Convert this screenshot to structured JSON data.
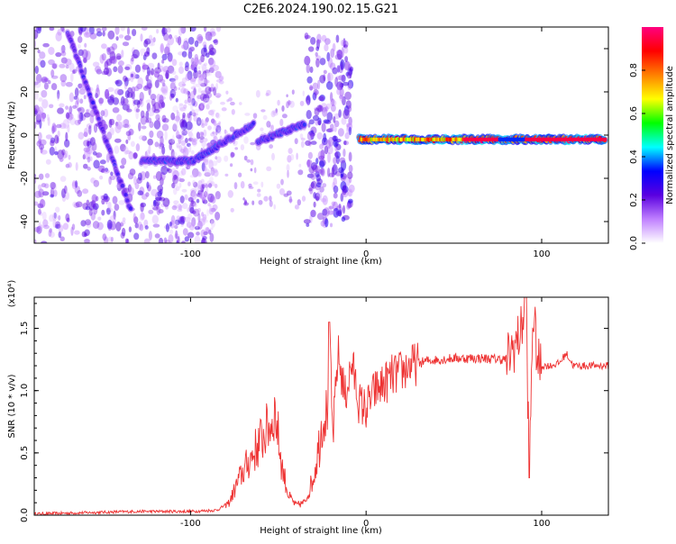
{
  "title": "C2E6.2024.190.02.15.G21",
  "chart_data": [
    {
      "type": "heatmap",
      "xlabel": "Height of straight line (km)",
      "ylabel": "Frequency (Hz)",
      "xlim": [
        -189,
        138
      ],
      "ylim": [
        -50,
        50
      ],
      "xticks": [
        -100,
        0,
        100
      ],
      "yticks": [
        -40,
        -20,
        0,
        20,
        40
      ],
      "colorbar": {
        "label": "Normalized spectral amplitude",
        "range": [
          0,
          1
        ],
        "ticks": [
          "0.0",
          "0.2",
          "0.4",
          "0.6",
          "0.8"
        ],
        "colors": [
          "#ffffff",
          "#c080ff",
          "#5a00e0",
          "#0000ff",
          "#00ffff",
          "#00ff00",
          "#ffff00",
          "#ff8000",
          "#ff0000",
          "#ff0080"
        ]
      },
      "features": [
        {
          "x": [
            -170,
            -134
          ],
          "y": [
            48,
            -35
          ],
          "level": 0.3
        },
        {
          "x": [
            -128,
            -99
          ],
          "y": [
            -12,
            -12
          ],
          "level": 0.35
        },
        {
          "x": [
            -99,
            -64
          ],
          "y": [
            -12,
            5
          ],
          "level": 0.35
        },
        {
          "x": [
            -62,
            -35
          ],
          "y": [
            -3,
            5
          ],
          "level": 0.35
        },
        {
          "x": [
            -4,
            136
          ],
          "y": [
            -2,
            -2
          ],
          "level": 0.9
        }
      ]
    },
    {
      "type": "line",
      "xlabel": "Height of straight line (km)",
      "ylabel": "SNR (10 * v/v)",
      "y_multiplier": "(x10⁴)",
      "xlim": [
        -189,
        138
      ],
      "ylim": [
        0,
        1.75
      ],
      "xticks": [
        -100,
        0,
        100
      ],
      "yticks": [
        0.0,
        0.5,
        1.0,
        1.5
      ],
      "color": "#ee3333",
      "points": [
        [
          -189,
          0.01
        ],
        [
          -160,
          0.02
        ],
        [
          -130,
          0.03
        ],
        [
          -100,
          0.03
        ],
        [
          -85,
          0.04
        ],
        [
          -78,
          0.1
        ],
        [
          -72,
          0.3
        ],
        [
          -66,
          0.45
        ],
        [
          -60,
          0.6
        ],
        [
          -56,
          0.7
        ],
        [
          -53,
          0.75
        ],
        [
          -52,
          0.85
        ],
        [
          -48,
          0.4
        ],
        [
          -44,
          0.15
        ],
        [
          -40,
          0.08
        ],
        [
          -35,
          0.1
        ],
        [
          -30,
          0.3
        ],
        [
          -27,
          0.55
        ],
        [
          -25,
          0.75
        ],
        [
          -22,
          0.85
        ],
        [
          -21,
          1.55
        ],
        [
          -19,
          0.6
        ],
        [
          -16,
          1.3
        ],
        [
          -12,
          0.95
        ],
        [
          -8,
          1.22
        ],
        [
          -4,
          0.9
        ],
        [
          0,
          0.85
        ],
        [
          5,
          1.0
        ],
        [
          10,
          1.05
        ],
        [
          15,
          1.12
        ],
        [
          20,
          1.15
        ],
        [
          25,
          1.2
        ],
        [
          35,
          1.24
        ],
        [
          50,
          1.26
        ],
        [
          65,
          1.26
        ],
        [
          80,
          1.25
        ],
        [
          88,
          1.45
        ],
        [
          91,
          1.75
        ],
        [
          93,
          0.3
        ],
        [
          95,
          1.65
        ],
        [
          98,
          1.2
        ],
        [
          105,
          1.2
        ],
        [
          110,
          1.22
        ],
        [
          114,
          1.3
        ],
        [
          118,
          1.2
        ],
        [
          130,
          1.2
        ],
        [
          138,
          1.2
        ]
      ]
    }
  ]
}
